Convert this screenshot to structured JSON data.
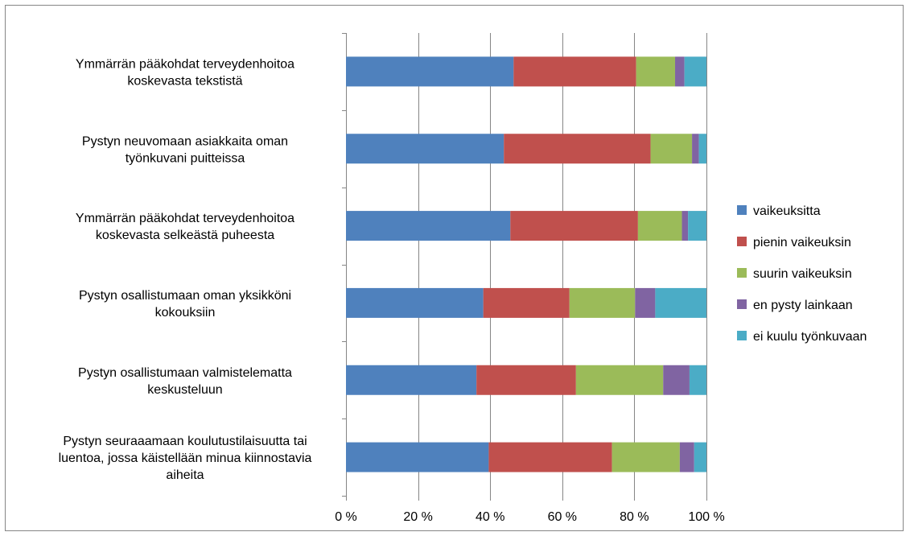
{
  "chart_data": {
    "type": "bar",
    "orientation": "horizontal",
    "stacked": "percent",
    "categories": [
      "Ymmärrän pääkohdat terveydenhoitoa koskevasta tekstistä",
      "Pystyn neuvomaan asiakkaita oman työnkuvani puitteissa",
      "Ymmärrän pääkohdat terveydenhoitoa koskevasta selkeästä puheesta",
      "Pystyn osallistumaan oman yksikköni kokouksiin",
      "Pystyn osallistumaan valmistelematta keskusteluun",
      "Pystyn seuraaamaan koulutustilaisuutta tai luentoa, jossa käistellään minua kiinnostavia aiheita"
    ],
    "category_lines": [
      [
        "Ymmärrän pääkohdat terveydenhoitoa",
        "koskevasta tekstistä"
      ],
      [
        "Pystyn neuvomaan asiakkaita oman",
        "työnkuvani puitteissa"
      ],
      [
        "Ymmärrän pääkohdat terveydenhoitoa",
        "koskevasta selkeästä puheesta"
      ],
      [
        "Pystyn osallistumaan oman yksikköni",
        "kokouksiin"
      ],
      [
        "Pystyn osallistumaan valmistelematta",
        "keskusteluun"
      ],
      [
        "Pystyn seuraaamaan koulutustilaisuutta tai",
        "luentoa, jossa käistellään minua kiinnostavia",
        "aiheita"
      ]
    ],
    "series": [
      {
        "name": "vaikeuksitta",
        "color": "#4F81BD",
        "values": [
          46.5,
          43.8,
          45.6,
          38.1,
          36.2,
          39.6
        ]
      },
      {
        "name": "pienin vaikeuksin",
        "color": "#C0504D",
        "values": [
          34.0,
          40.7,
          35.4,
          23.9,
          27.6,
          34.2
        ]
      },
      {
        "name": "suurin vaikeuksin",
        "color": "#9BBB59",
        "values": [
          10.8,
          11.5,
          12.2,
          18.2,
          24.2,
          18.8
        ]
      },
      {
        "name": "en pysty lainkaan",
        "color": "#8064A2",
        "values": [
          2.6,
          1.9,
          1.7,
          5.6,
          7.3,
          4.0
        ]
      },
      {
        "name": "ei kuulu työnkuvaan",
        "color": "#4BACC6",
        "values": [
          6.1,
          2.1,
          5.1,
          14.2,
          4.7,
          3.4
        ]
      }
    ],
    "x_ticks": [
      "0 %",
      "20 %",
      "40 %",
      "60 %",
      "80 %",
      "100 %"
    ],
    "xlim": [
      0,
      100
    ],
    "grid": true,
    "legend_position": "right"
  }
}
